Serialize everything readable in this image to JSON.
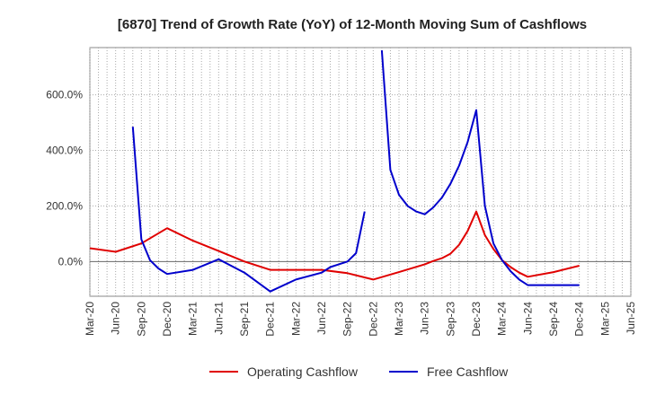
{
  "chart_data": {
    "type": "line",
    "title": "[6870]  Trend of Growth Rate (YoY) of 12-Month Moving Sum of Cashflows",
    "xlabel": "",
    "ylabel": "",
    "x_ticks": [
      "Mar-20",
      "Jun-20",
      "Sep-20",
      "Dec-20",
      "Mar-21",
      "Jun-21",
      "Sep-21",
      "Dec-21",
      "Mar-22",
      "Jun-22",
      "Sep-22",
      "Dec-22",
      "Mar-23",
      "Jun-23",
      "Sep-23",
      "Dec-23",
      "Mar-24",
      "Jun-24",
      "Sep-24",
      "Dec-24",
      "Mar-25",
      "Jun-25"
    ],
    "y_ticks": [
      {
        "value": 0,
        "label": "0.0%"
      },
      {
        "value": 200,
        "label": "200.0%"
      },
      {
        "value": 400,
        "label": "400.0%"
      },
      {
        "value": 600,
        "label": "600.0%"
      }
    ],
    "ylim": [
      -125,
      770
    ],
    "grid": true,
    "legend_position": "bottom",
    "series": [
      {
        "name": "Operating Cashflow",
        "color": "#e00000",
        "points": [
          [
            "2020-03",
            48
          ],
          [
            "2020-06",
            35
          ],
          [
            "2020-09",
            65
          ],
          [
            "2020-12",
            120
          ],
          [
            "2021-03",
            75
          ],
          [
            "2021-06",
            38
          ],
          [
            "2021-09",
            0
          ],
          [
            "2021-12",
            -30
          ],
          [
            "2022-03",
            -30
          ],
          [
            "2022-06",
            -30
          ],
          [
            "2022-09",
            -42
          ],
          [
            "2022-12",
            -65
          ],
          [
            "2023-03",
            -38
          ],
          [
            "2023-06",
            -10
          ],
          [
            "2023-07",
            2
          ],
          [
            "2023-08",
            12
          ],
          [
            "2023-09",
            28
          ],
          [
            "2023-10",
            60
          ],
          [
            "2023-11",
            110
          ],
          [
            "2023-12",
            180
          ],
          [
            "2024-01",
            95
          ],
          [
            "2024-02",
            45
          ],
          [
            "2024-03",
            5
          ],
          [
            "2024-04",
            -20
          ],
          [
            "2024-05",
            -40
          ],
          [
            "2024-06",
            -55
          ],
          [
            "2024-09",
            -38
          ],
          [
            "2024-12",
            -15
          ]
        ]
      },
      {
        "name": "Free Cashflow",
        "color": "#0000cc",
        "segments": [
          [
            [
              "2020-08",
              485
            ],
            [
              "2020-09",
              80
            ],
            [
              "2020-10",
              5
            ],
            [
              "2020-11",
              -25
            ],
            [
              "2020-12",
              -45
            ],
            [
              "2021-03",
              -30
            ],
            [
              "2021-06",
              8
            ],
            [
              "2021-09",
              -40
            ],
            [
              "2021-12",
              -108
            ],
            [
              "2022-03",
              -65
            ],
            [
              "2022-06",
              -40
            ],
            [
              "2022-07",
              -20
            ],
            [
              "2022-08",
              -10
            ],
            [
              "2022-09",
              0
            ],
            [
              "2022-10",
              30
            ],
            [
              "2022-11",
              180
            ]
          ],
          [
            [
              "2023-01",
              760
            ],
            [
              "2023-02",
              330
            ],
            [
              "2023-03",
              240
            ],
            [
              "2023-04",
              200
            ],
            [
              "2023-05",
              180
            ],
            [
              "2023-06",
              170
            ],
            [
              "2023-07",
              195
            ],
            [
              "2023-08",
              230
            ],
            [
              "2023-09",
              280
            ],
            [
              "2023-10",
              345
            ],
            [
              "2023-11",
              430
            ],
            [
              "2023-12",
              545
            ],
            [
              "2024-01",
              200
            ],
            [
              "2024-02",
              65
            ],
            [
              "2024-03",
              5
            ],
            [
              "2024-04",
              -35
            ],
            [
              "2024-05",
              -65
            ],
            [
              "2024-06",
              -85
            ],
            [
              "2024-09",
              -85
            ],
            [
              "2024-12",
              -85
            ]
          ]
        ]
      }
    ]
  }
}
